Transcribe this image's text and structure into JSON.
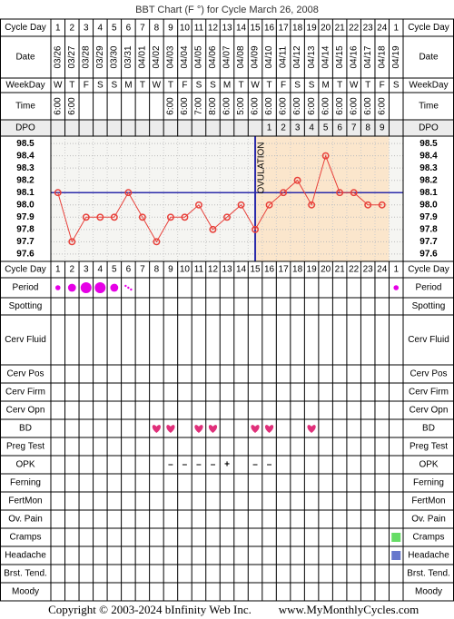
{
  "title": "BBT Chart (F °) for Cycle March 26, 2008",
  "labels": {
    "cycle_day": "Cycle Day",
    "date": "Date",
    "weekday": "WeekDay",
    "time": "Time",
    "dpo": "DPO"
  },
  "chart_data": {
    "type": "line",
    "categories": [
      1,
      2,
      3,
      4,
      5,
      6,
      7,
      8,
      9,
      10,
      11,
      12,
      13,
      14,
      15,
      16,
      17,
      18,
      19,
      20,
      21,
      22,
      23,
      24,
      1
    ],
    "dates": [
      "03/26",
      "03/27",
      "03/28",
      "03/29",
      "03/30",
      "03/31",
      "04/01",
      "04/02",
      "04/03",
      "04/04",
      "04/05",
      "04/06",
      "04/07",
      "04/08",
      "04/09",
      "04/10",
      "04/11",
      "04/12",
      "04/13",
      "04/14",
      "04/15",
      "04/16",
      "04/17",
      "04/18",
      "04/19"
    ],
    "weekdays": [
      "W",
      "T",
      "F",
      "S",
      "S",
      "M",
      "T",
      "W",
      "T",
      "F",
      "S",
      "S",
      "M",
      "T",
      "W",
      "T",
      "F",
      "S",
      "S",
      "M",
      "T",
      "W",
      "T",
      "F",
      "S"
    ],
    "times": [
      "6:00",
      "6:00",
      null,
      null,
      null,
      null,
      null,
      null,
      "6:00",
      "6:00",
      "7:00",
      "8:00",
      "6:00",
      "5:00",
      "6:00",
      "6:00",
      "6:00",
      "6:00",
      "6:00",
      "6:00",
      "6:00",
      "6:00",
      "6:00",
      "6:00",
      null
    ],
    "dpo": [
      null,
      null,
      null,
      null,
      null,
      null,
      null,
      null,
      null,
      null,
      null,
      null,
      null,
      null,
      null,
      1,
      2,
      3,
      4,
      5,
      6,
      7,
      8,
      9,
      null
    ],
    "values": [
      98.1,
      97.7,
      97.9,
      97.9,
      97.9,
      98.1,
      97.9,
      97.7,
      97.9,
      97.9,
      98.0,
      97.8,
      97.9,
      98.0,
      97.8,
      98.0,
      98.1,
      98.2,
      98.0,
      98.4,
      98.1,
      98.1,
      98.0,
      98.0,
      null
    ],
    "color": "#e8403a",
    "ylim": [
      97.54,
      98.56
    ],
    "yticks": [
      98.5,
      98.4,
      98.3,
      98.2,
      98.1,
      {
        "value": 98,
        "label": "98.0"
      },
      97.9,
      97.8,
      97.7,
      97.6
    ],
    "coverline": {
      "value": 98.1,
      "color": "#2a2aaa"
    },
    "ovulation": {
      "label": "OVULATION",
      "day": 15,
      "color": "#2a2aaa",
      "shade": "#fbe6cc"
    },
    "grid": true
  },
  "observations": [
    {
      "label": "Period",
      "values": [
        2,
        3,
        4,
        4,
        3,
        1,
        null,
        null,
        null,
        null,
        null,
        null,
        null,
        null,
        null,
        null,
        null,
        null,
        null,
        null,
        null,
        null,
        null,
        null,
        2
      ],
      "color": "#e600e6"
    },
    {
      "label": "Spotting"
    },
    {
      "label": "Cerv Fluid"
    },
    {
      "label": "Cerv Pos"
    },
    {
      "label": "Cerv Firm"
    },
    {
      "label": "Cerv Opn"
    },
    {
      "label": "BD",
      "values": [
        null,
        null,
        null,
        null,
        null,
        null,
        null,
        1,
        1,
        null,
        1,
        1,
        null,
        null,
        1,
        1,
        null,
        null,
        1,
        null,
        null,
        null,
        null,
        null,
        null
      ],
      "color": "#e0307a"
    },
    {
      "label": "Preg Test"
    },
    {
      "label": "OPK",
      "texts": [
        null,
        null,
        null,
        null,
        null,
        null,
        null,
        null,
        "–",
        "–",
        "–",
        "–",
        "+",
        null,
        "–",
        "–",
        null,
        null,
        null,
        null,
        null,
        null,
        null,
        null,
        null
      ],
      "color": "#8a3acc"
    },
    {
      "label": "Ferning"
    },
    {
      "label": "FertMon"
    },
    {
      "label": "Ov. Pain"
    },
    {
      "label": "Cramps",
      "values": [
        null,
        null,
        null,
        null,
        null,
        null,
        null,
        null,
        null,
        null,
        null,
        null,
        null,
        null,
        null,
        null,
        null,
        null,
        null,
        null,
        null,
        null,
        null,
        null,
        1
      ],
      "color": "#66dd66"
    },
    {
      "label": "Headache",
      "values": [
        null,
        null,
        null,
        null,
        null,
        null,
        null,
        null,
        null,
        null,
        null,
        null,
        null,
        null,
        null,
        null,
        null,
        null,
        null,
        null,
        null,
        null,
        null,
        null,
        1
      ],
      "color": "#6677cc"
    },
    {
      "label": "Brst. Tend."
    },
    {
      "label": "Moody"
    }
  ],
  "footer": {
    "copyright": "Copyright © 2003-2024 bInfinity Web Inc.",
    "site": "www.MyMonthlyCycles.com"
  }
}
